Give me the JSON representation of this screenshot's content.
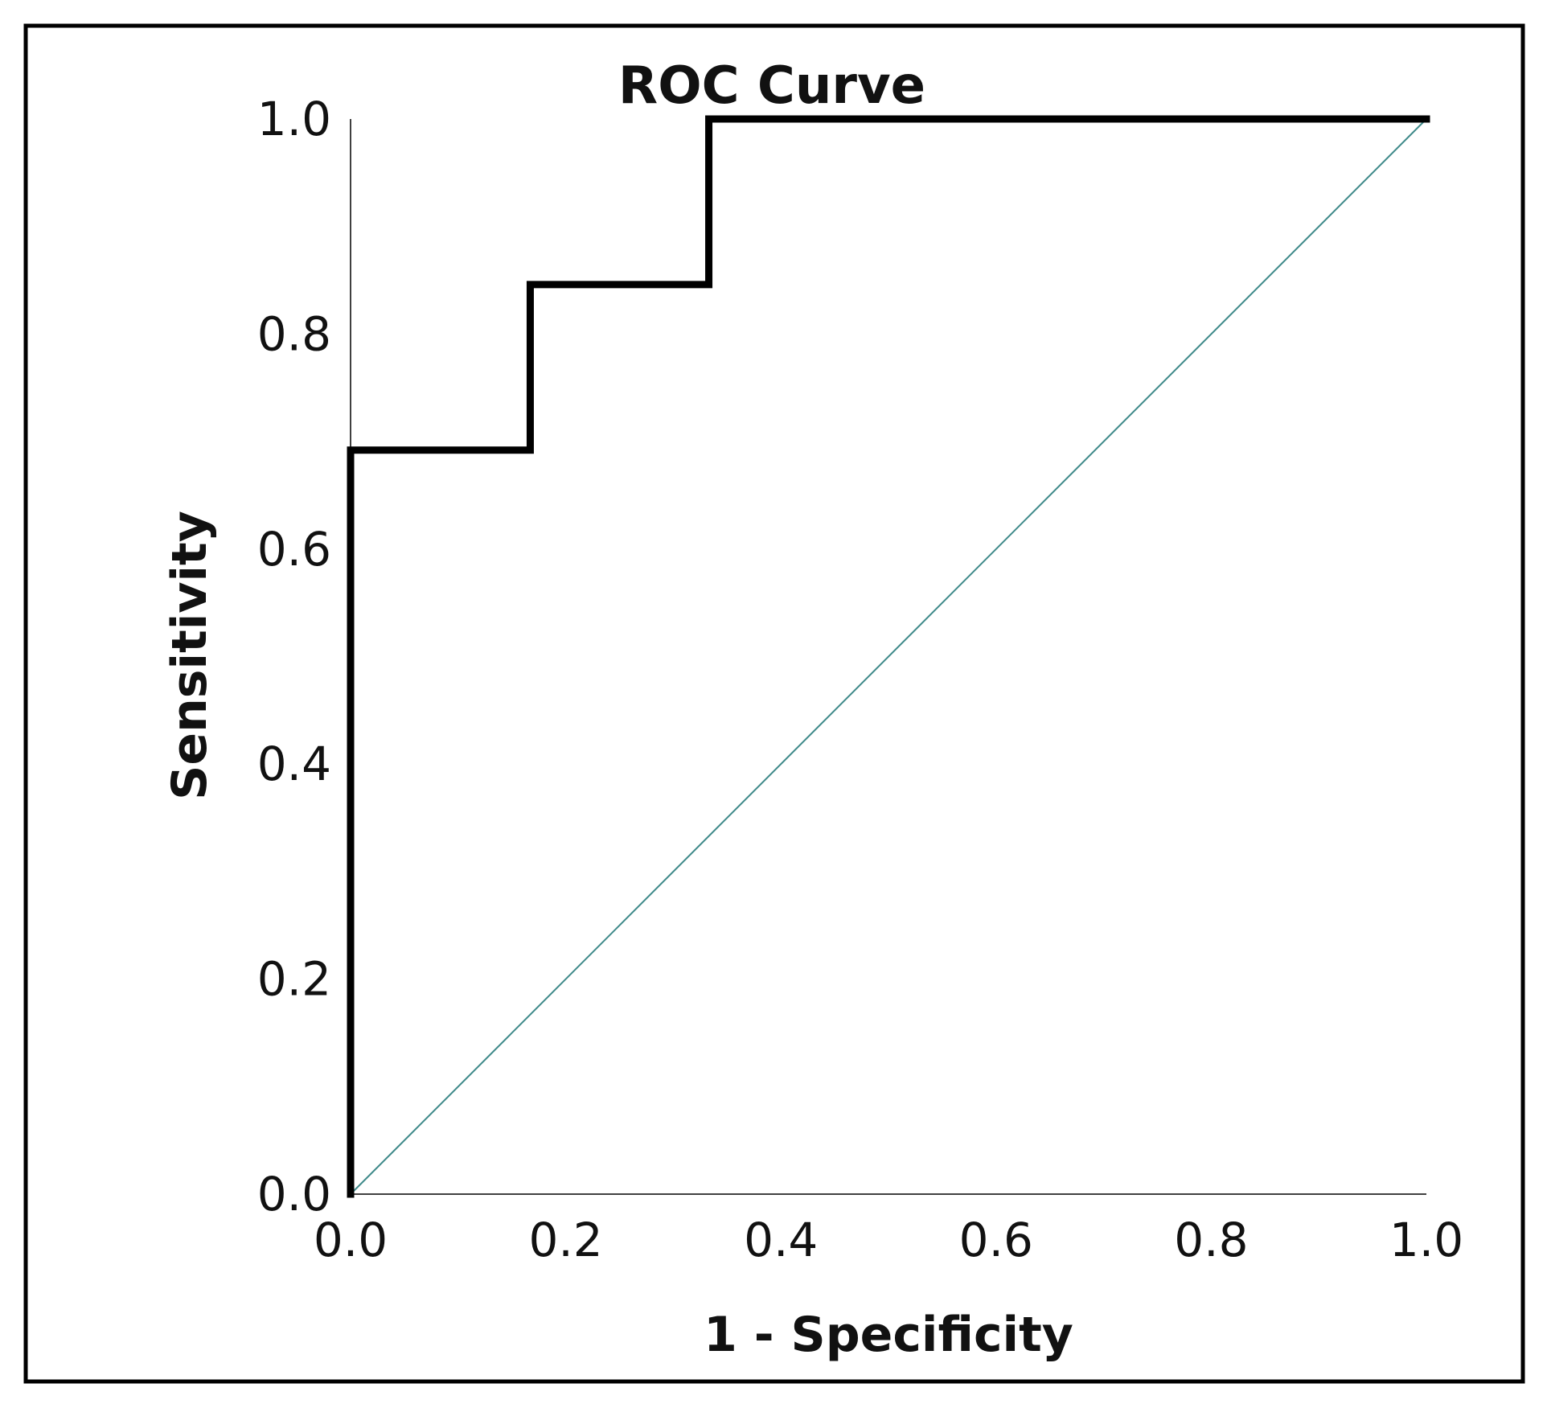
{
  "chart_data": {
    "type": "line",
    "title": "ROC Curve",
    "xlabel": "1 - Specificity",
    "ylabel": "Sensitivity",
    "xlim": [
      0,
      1
    ],
    "ylim": [
      0,
      1
    ],
    "grid": false,
    "xticks": [
      "0.0",
      "0.2",
      "0.4",
      "0.6",
      "0.8",
      "1.0"
    ],
    "yticks": [
      "0.0",
      "0.2",
      "0.4",
      "0.6",
      "0.8",
      "1.0"
    ],
    "xtick_values": [
      0,
      0.2,
      0.4,
      0.6,
      0.8,
      1.0
    ],
    "ytick_values": [
      0,
      0.2,
      0.4,
      0.6,
      0.8,
      1.0
    ],
    "series": [
      {
        "name": "ROC",
        "style": "step",
        "color": "#000000",
        "x": [
          0,
          0,
          0.167,
          0.167,
          0.333,
          0.333,
          1.0
        ],
        "y": [
          0,
          0.692,
          0.692,
          0.846,
          0.846,
          1.0,
          1.0
        ]
      },
      {
        "name": "Reference line",
        "style": "diagonal",
        "color": "#3f8a8a",
        "x": [
          0,
          1
        ],
        "y": [
          0,
          1
        ]
      }
    ]
  }
}
